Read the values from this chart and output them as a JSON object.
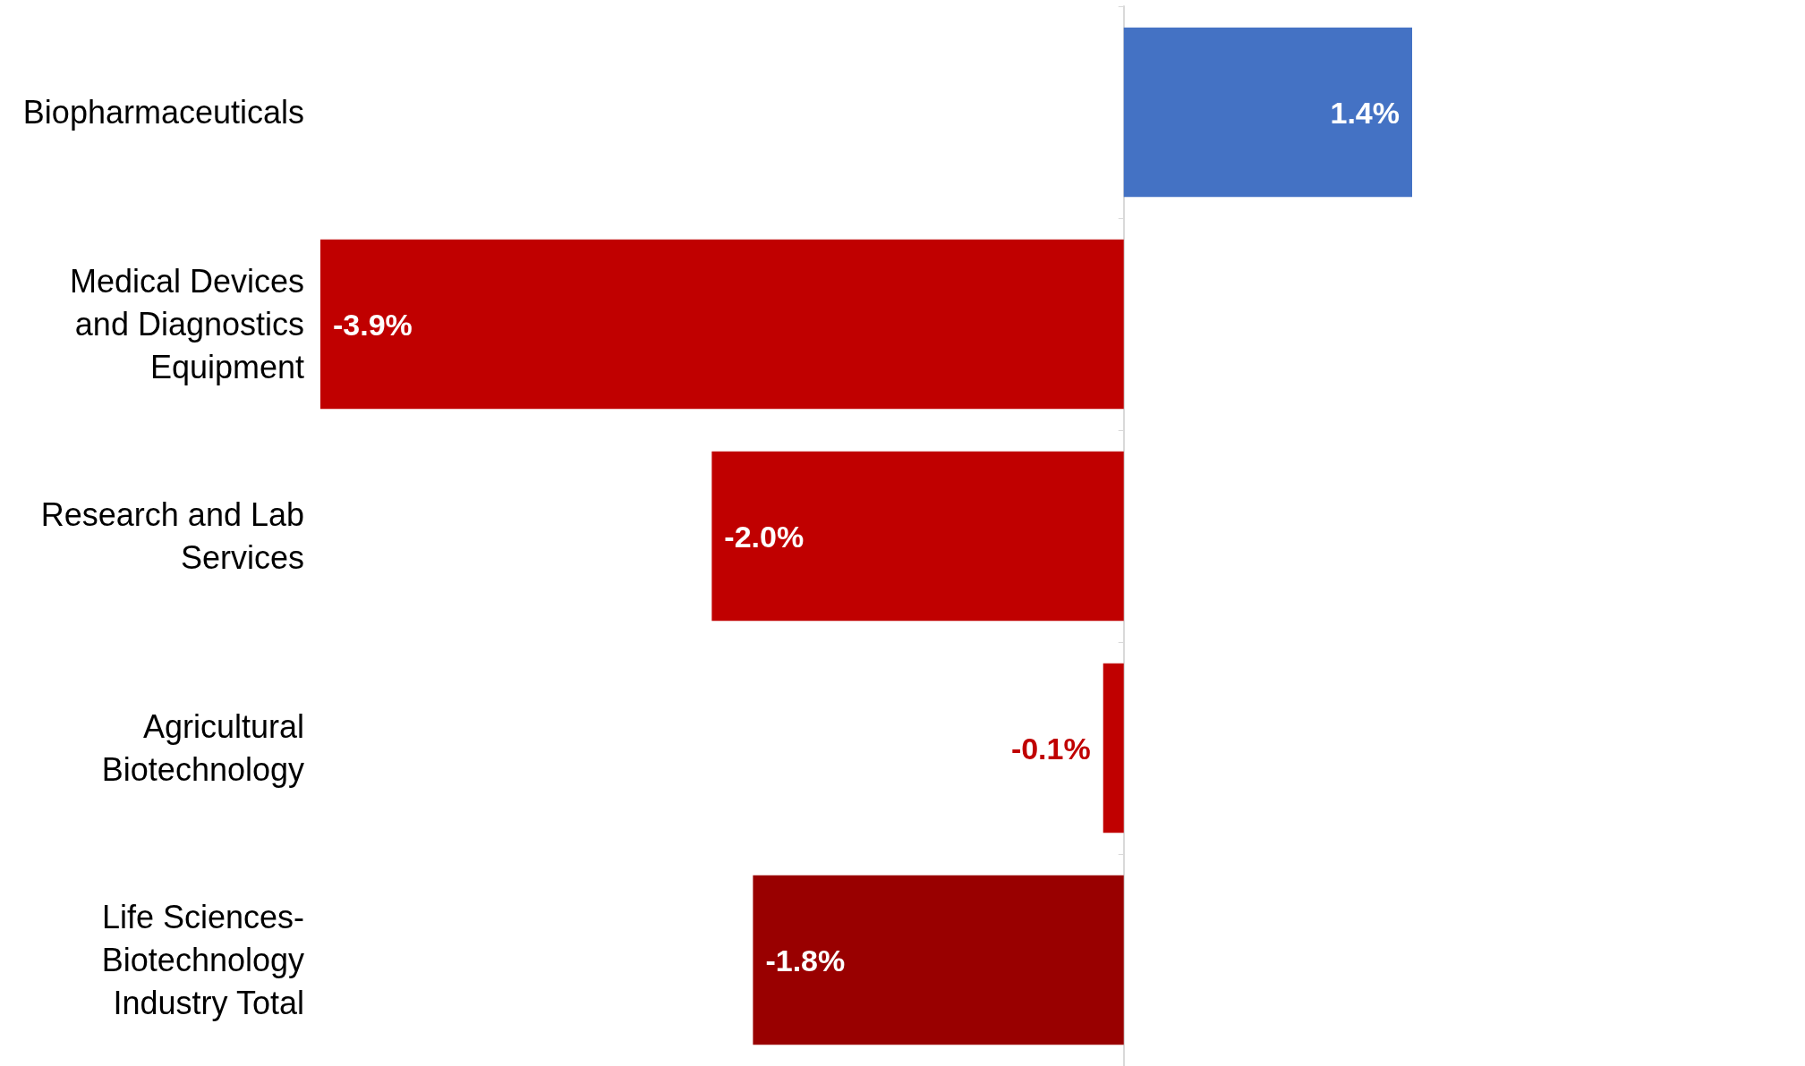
{
  "chart_data": {
    "type": "bar",
    "orientation": "horizontal",
    "categories": [
      "Biopharmaceuticals",
      "Medical Devices and Diagnostics Equipment",
      "Research and Lab Services",
      "Agricultural Biotechnology",
      "Life Sciences-Biotechnology Industry Total"
    ],
    "values": [
      1.4,
      -3.9,
      -2.0,
      -0.1,
      -1.8
    ],
    "value_labels": [
      "1.4%",
      "-3.9%",
      "-2.0%",
      "-0.1%",
      "-1.8%"
    ],
    "colors": [
      "#4472c4",
      "#c00000",
      "#c00000",
      "#c00000",
      "#990000"
    ],
    "tick_labels": "y"
  }
}
